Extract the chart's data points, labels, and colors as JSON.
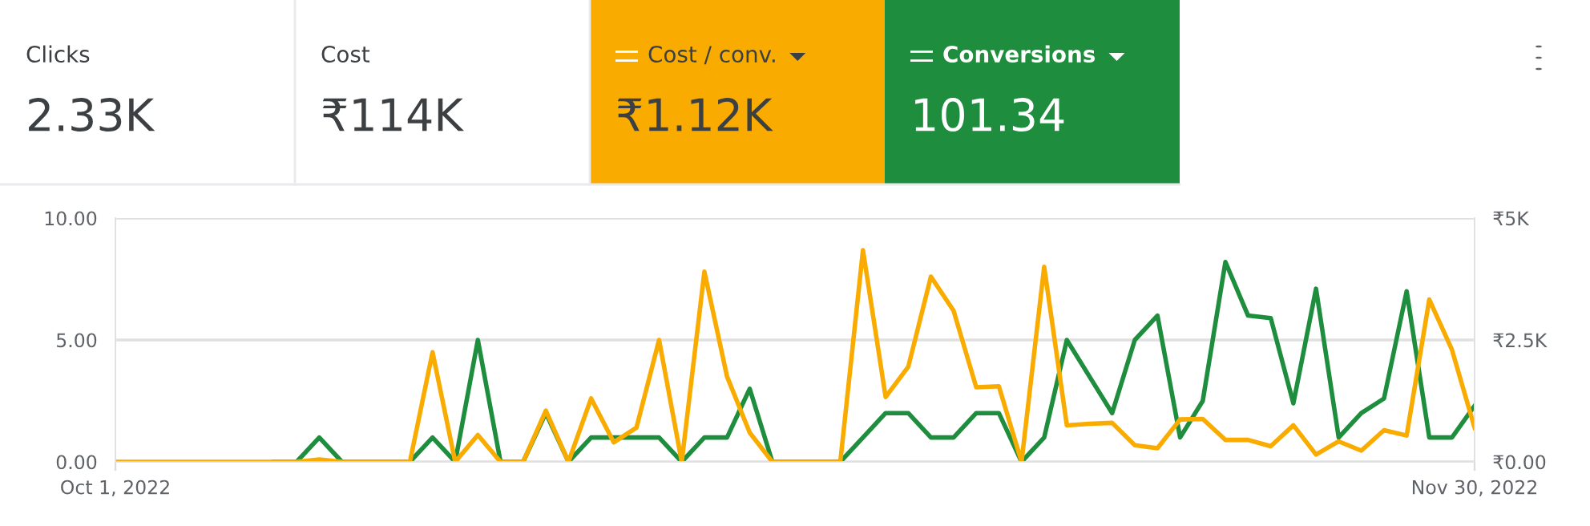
{
  "chart_data": {
    "type": "line",
    "annotations": [
      "Clicks",
      "2.33K",
      "Cost",
      "₹114K",
      "₹1.12K",
      "101.34"
    ],
    "x": [
      "2022-10-01",
      "2022-10-02",
      "2022-10-03",
      "2022-10-04",
      "2022-10-05",
      "2022-10-06",
      "2022-10-07",
      "2022-10-08",
      "2022-10-09",
      "2022-10-10",
      "2022-10-11",
      "2022-10-12",
      "2022-10-13",
      "2022-10-14",
      "2022-10-15",
      "2022-10-16",
      "2022-10-17",
      "2022-10-18",
      "2022-10-19",
      "2022-10-20",
      "2022-10-21",
      "2022-10-22",
      "2022-10-23",
      "2022-10-24",
      "2022-10-25",
      "2022-10-26",
      "2022-10-27",
      "2022-10-28",
      "2022-10-29",
      "2022-10-30",
      "2022-10-31",
      "2022-11-01",
      "2022-11-02",
      "2022-11-03",
      "2022-11-04",
      "2022-11-05",
      "2022-11-06",
      "2022-11-07",
      "2022-11-08",
      "2022-11-09",
      "2022-11-10",
      "2022-11-11",
      "2022-11-12",
      "2022-11-13",
      "2022-11-14",
      "2022-11-15",
      "2022-11-16",
      "2022-11-17",
      "2022-11-18",
      "2022-11-19",
      "2022-11-20",
      "2022-11-21",
      "2022-11-22",
      "2022-11-23",
      "2022-11-24",
      "2022-11-25",
      "2022-11-26",
      "2022-11-27",
      "2022-11-28",
      "2022-11-29",
      "2022-11-30"
    ],
    "series": [
      {
        "name": "Cost / conv.",
        "color": "#f9ab00",
        "axis": "y2",
        "values": [
          0,
          0,
          0,
          0,
          0,
          0,
          0,
          0,
          0,
          50,
          0,
          0,
          0,
          0,
          2250,
          0,
          550,
          0,
          0,
          1050,
          0,
          1300,
          400,
          700,
          2500,
          0,
          3900,
          1750,
          600,
          0,
          0,
          0,
          0,
          4340,
          1330,
          1950,
          3800,
          3100,
          1530,
          1550,
          0,
          4000,
          750,
          780,
          800,
          340,
          280,
          870,
          880,
          450,
          450,
          320,
          750,
          150,
          420,
          230,
          650,
          540,
          3330,
          2300,
          700
        ]
      },
      {
        "name": "Conversions",
        "color": "#1e8e3e",
        "axis": "y",
        "values": [
          null,
          null,
          null,
          null,
          null,
          null,
          null,
          0,
          0,
          1,
          0,
          0,
          0,
          0,
          1,
          0,
          5,
          0,
          0,
          2,
          0,
          1,
          1,
          1,
          1,
          0,
          1,
          1,
          3,
          0,
          0,
          0,
          0,
          1,
          2,
          2,
          1,
          1,
          2,
          2,
          0,
          1,
          5,
          3.5,
          2,
          5,
          6,
          1,
          2.5,
          8.2,
          6,
          5.9,
          2.4,
          7.1,
          1,
          2,
          2.6,
          7,
          1,
          1,
          2.3
        ]
      }
    ],
    "xlim": [
      "2022-10-01",
      "2022-11-30"
    ],
    "xticks": [
      {
        "value": "2022-10-01",
        "label": "Oct 1, 2022"
      },
      {
        "value": "2022-11-30",
        "label": "Nov 30, 2022"
      }
    ],
    "ylim": [
      0,
      10
    ],
    "yticks": [
      {
        "value": 0,
        "label": "0.00"
      },
      {
        "value": 5,
        "label": "5.00"
      },
      {
        "value": 10,
        "label": "10.00"
      }
    ],
    "y2lim": [
      0,
      5000
    ],
    "y2ticks": [
      {
        "value": 0,
        "label": "₹0.00"
      },
      {
        "value": 2500,
        "label": "₹2.5K"
      },
      {
        "value": 5000,
        "label": "₹5K"
      }
    ],
    "grid": "y",
    "legend": "top",
    "line_style": "solid",
    "marker": "none"
  }
}
